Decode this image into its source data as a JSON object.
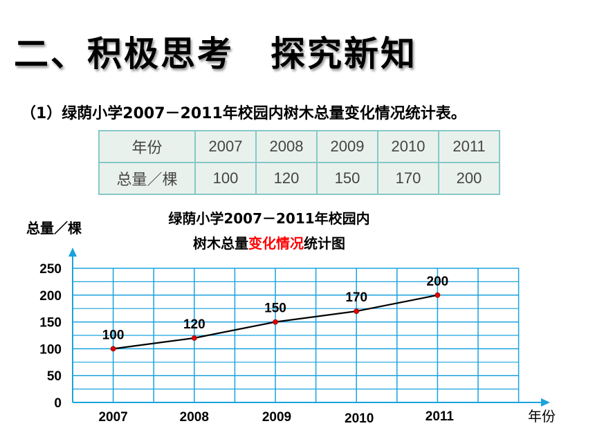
{
  "heading": "二、积极思考　探究新知",
  "subtitle": "（1）绿荫小学2007－2011年校园内树木总量变化情况统计表。",
  "table": {
    "header_label": "年份",
    "row_label": "总量／棵",
    "years": [
      "2007",
      "2008",
      "2009",
      "2010",
      "2011"
    ],
    "values": [
      "100",
      "120",
      "150",
      "170",
      "200"
    ]
  },
  "chart_data": {
    "type": "line",
    "title_line1": "绿荫小学2007－2011年校园内",
    "title_line2_prefix": "树木总量",
    "title_line2_highlight": "变化情况",
    "title_line2_suffix": "统计图",
    "xlabel": "年份",
    "ylabel": "总量／棵",
    "categories": [
      "2007",
      "2008",
      "2009",
      "2010",
      "2011"
    ],
    "values": [
      100,
      120,
      150,
      170,
      200
    ],
    "data_labels": [
      "100",
      "120",
      "150",
      "170",
      "200"
    ],
    "yticks": [
      0,
      50,
      100,
      150,
      200,
      250
    ],
    "ylim": [
      0,
      250
    ],
    "grid": true,
    "colors": {
      "grid": "#19a2dd",
      "line": "#000000",
      "marker": "#e00000",
      "highlight": "#ff0000"
    }
  }
}
